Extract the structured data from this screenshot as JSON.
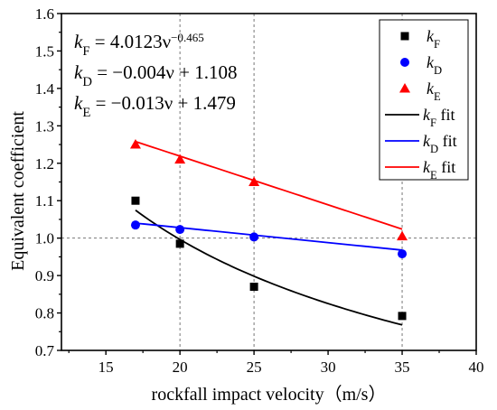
{
  "chart_data": {
    "type": "scatter",
    "xlabel": "rockfall impact velocity（m/s）",
    "ylabel": "Equivalent coefficient",
    "xlim": [
      12,
      40
    ],
    "ylim": [
      0.7,
      1.6
    ],
    "xticks": [
      15,
      20,
      25,
      30,
      35,
      40
    ],
    "yticks": [
      0.7,
      0.8,
      0.9,
      1.0,
      1.1,
      1.2,
      1.3,
      1.4,
      1.5,
      1.6
    ],
    "reference_lines": {
      "x": [
        20,
        25,
        35
      ],
      "y": [
        1.0
      ]
    },
    "legend_position": "top-right",
    "equations": [
      {
        "lhs_base": "k",
        "lhs_sub": "F",
        "rhs": "4.0123ν",
        "rhs_sup": "−0.465"
      },
      {
        "lhs_base": "k",
        "lhs_sub": "D",
        "rhs": "−0.004ν + 1.108",
        "rhs_sup": ""
      },
      {
        "lhs_base": "k",
        "lhs_sub": "E",
        "rhs": "−0.013ν + 1.479",
        "rhs_sup": ""
      }
    ],
    "series": [
      {
        "name": "kF",
        "label_base": "k",
        "label_sub": "F",
        "marker": "square",
        "color": "#000000",
        "x": [
          17,
          20,
          25,
          35
        ],
        "y": [
          1.1,
          0.985,
          0.87,
          0.792
        ]
      },
      {
        "name": "kD",
        "label_base": "k",
        "label_sub": "D",
        "marker": "circle",
        "color": "#0000ff",
        "x": [
          17,
          20,
          25,
          35
        ],
        "y": [
          1.035,
          1.023,
          1.003,
          0.958
        ]
      },
      {
        "name": "kE",
        "label_base": "k",
        "label_sub": "E",
        "marker": "triangle",
        "color": "#ff0000",
        "x": [
          17,
          20,
          25,
          35
        ],
        "y": [
          1.25,
          1.21,
          1.15,
          1.005
        ]
      }
    ],
    "fits": [
      {
        "name": "kF fit",
        "label_base": "k",
        "label_sub": "F",
        "label_suffix": " fit",
        "color": "#000000",
        "kind": "power",
        "coef": 4.0123,
        "exp": -0.465,
        "x_range": [
          17,
          35
        ]
      },
      {
        "name": "kD fit",
        "label_base": "k",
        "label_sub": "D",
        "label_suffix": " fit",
        "color": "#0000ff",
        "kind": "linear",
        "slope": -0.004,
        "intercept": 1.108,
        "x_range": [
          17,
          35
        ]
      },
      {
        "name": "kE fit",
        "label_base": "k",
        "label_sub": "E",
        "label_suffix": " fit",
        "color": "#ff0000",
        "kind": "linear",
        "slope": -0.013,
        "intercept": 1.479,
        "x_range": [
          17,
          35
        ]
      }
    ]
  }
}
